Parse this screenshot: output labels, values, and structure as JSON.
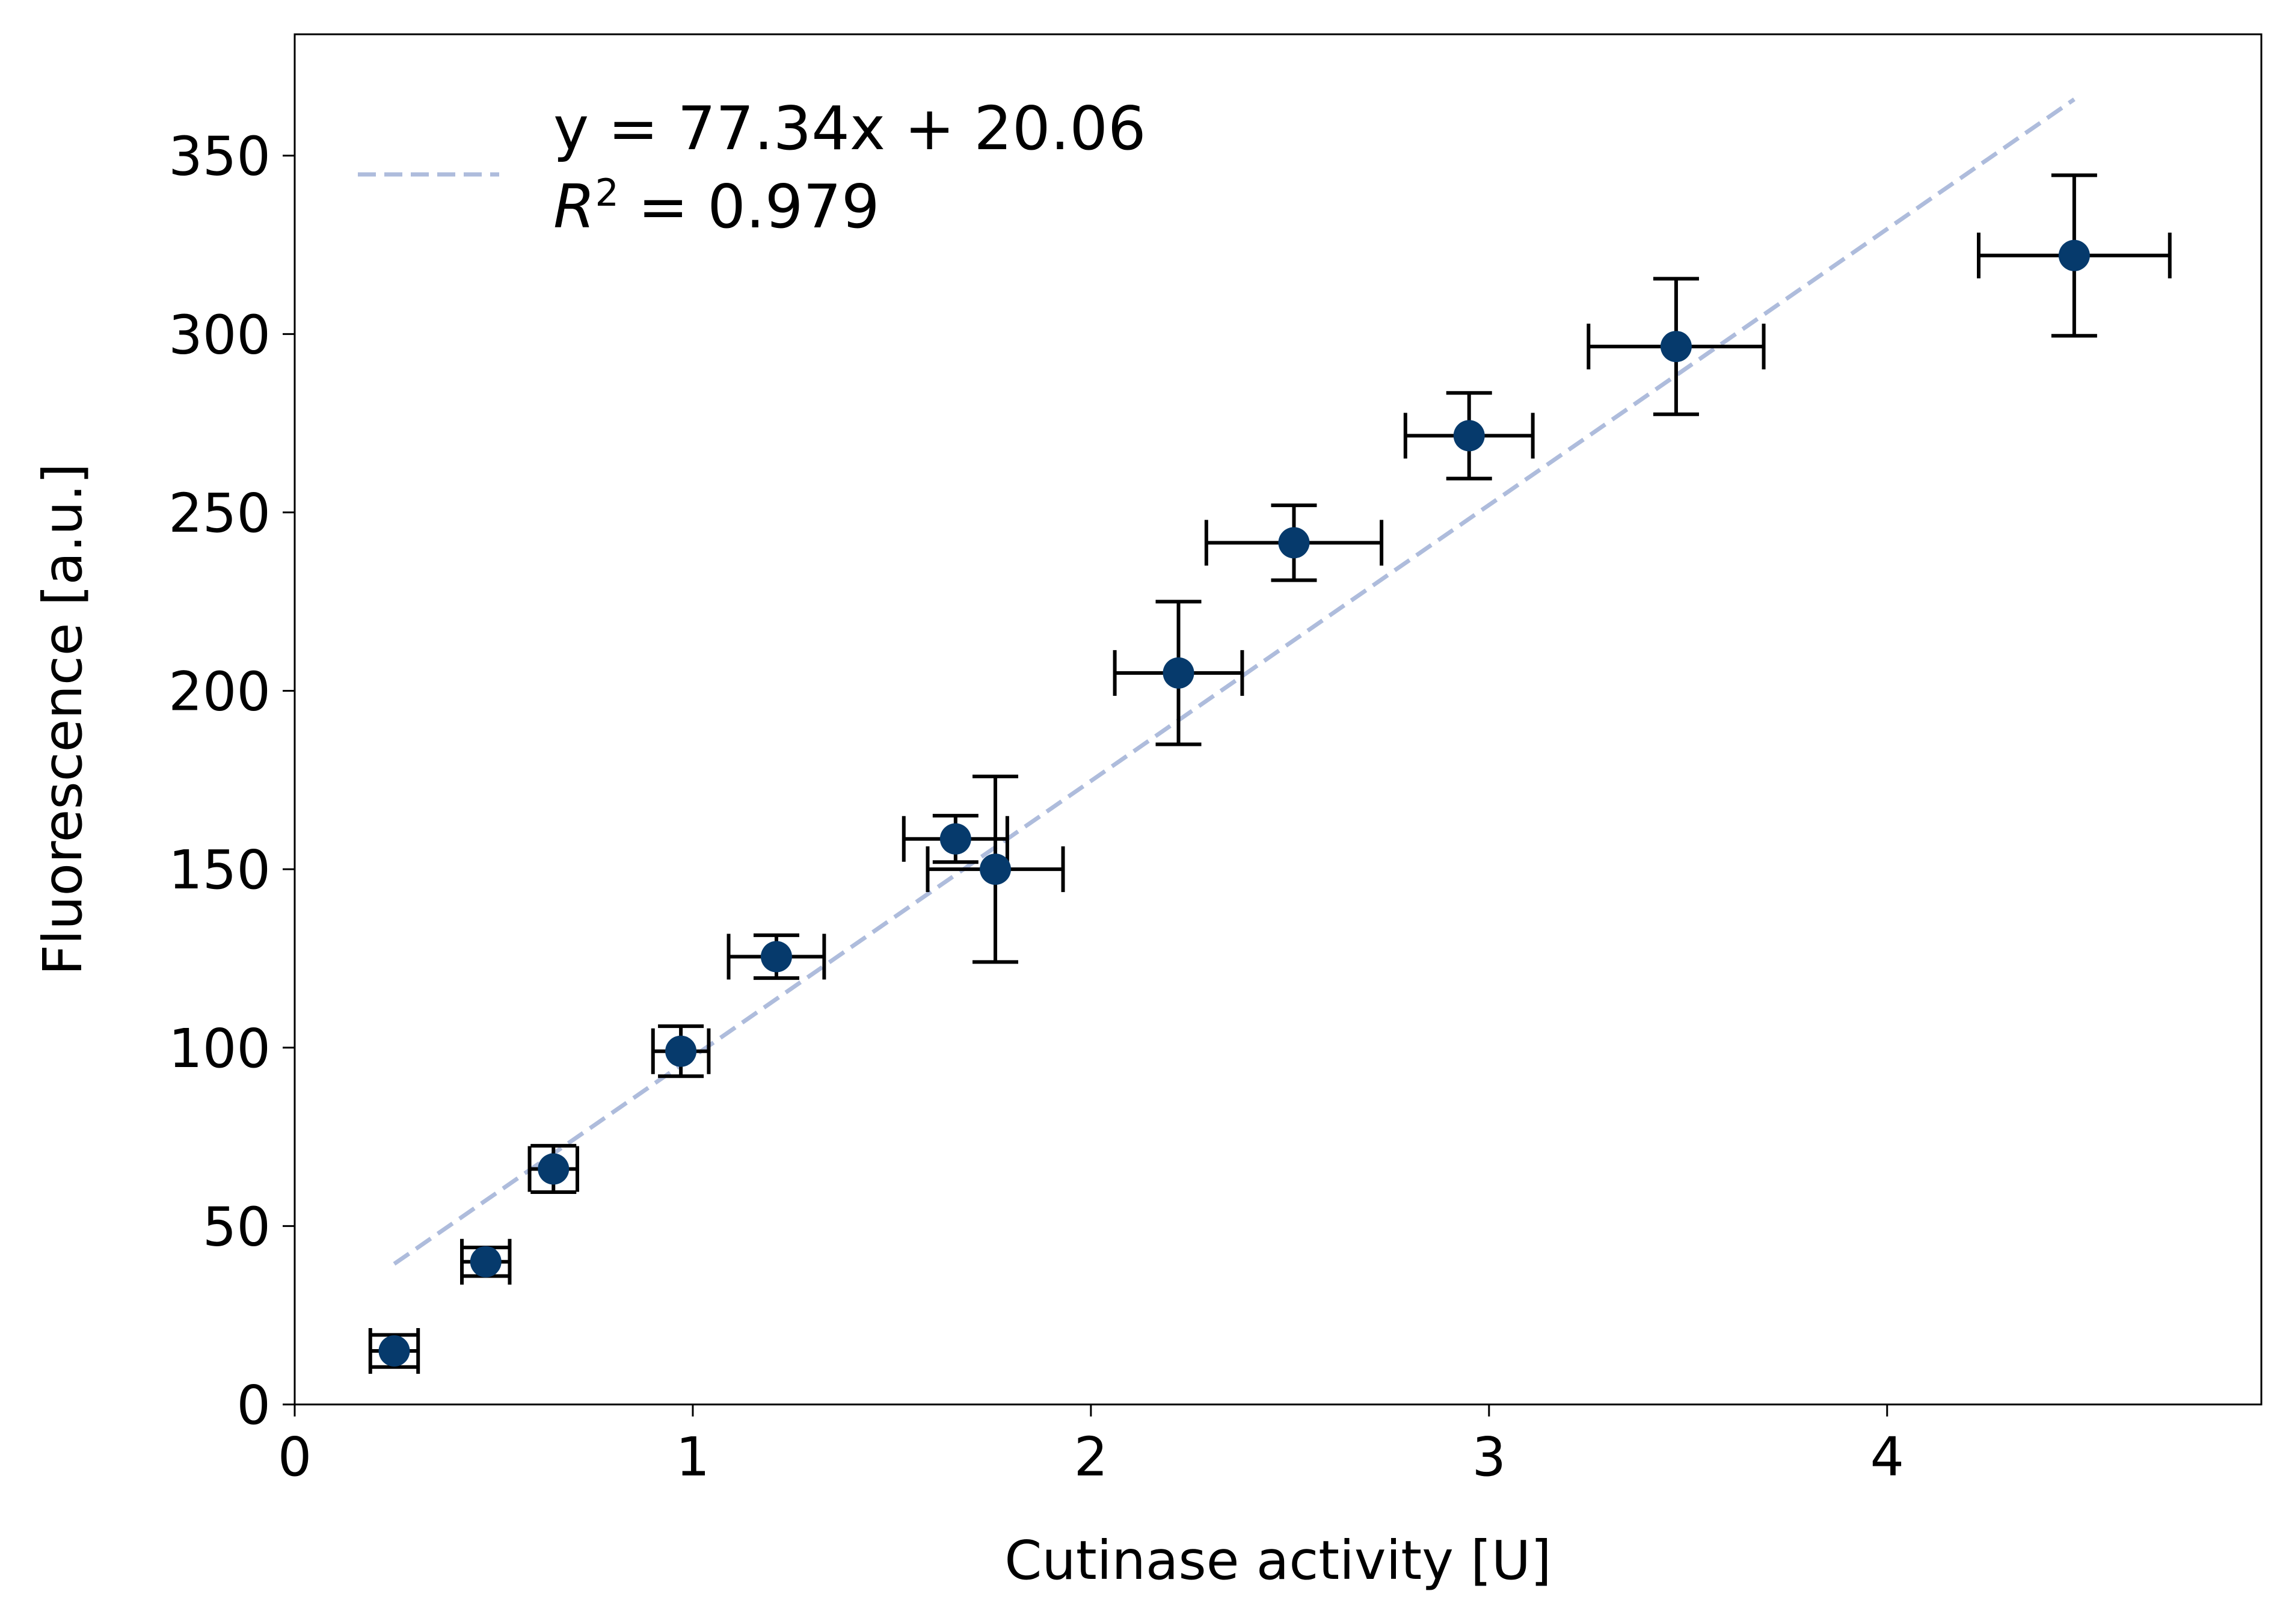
{
  "chart_data": {
    "type": "scatter",
    "title": "",
    "xlabel": "Cutinase activity [U]",
    "ylabel": "Fluorescence [a.u.]",
    "xlim": [
      0,
      4.94
    ],
    "ylim": [
      0,
      384
    ],
    "xticks": [
      0,
      1,
      2,
      3,
      4
    ],
    "yticks": [
      0,
      50,
      100,
      150,
      200,
      250,
      300,
      350
    ],
    "xtick_labels": [
      "0",
      "1",
      "2",
      "3",
      "4"
    ],
    "ytick_labels": [
      "0",
      "50",
      "100",
      "150",
      "200",
      "250",
      "300",
      "350"
    ],
    "grid": false,
    "legend_position": "top-left",
    "series": [
      {
        "kind": "errorbar",
        "marker_color": "#063a6c",
        "errorbar_color": "#000000",
        "points": [
          {
            "x": 0.25,
            "y": 15,
            "xerr": 0.06,
            "yerr": 4.5
          },
          {
            "x": 0.48,
            "y": 40,
            "xerr": 0.06,
            "yerr": 4.0
          },
          {
            "x": 0.65,
            "y": 66,
            "xerr": 0.06,
            "yerr": 6.5
          },
          {
            "x": 0.97,
            "y": 99,
            "xerr": 0.07,
            "yerr": 7.0
          },
          {
            "x": 1.21,
            "y": 125.5,
            "xerr": 0.12,
            "yerr": 6.0
          },
          {
            "x": 1.66,
            "y": 158.5,
            "xerr": 0.13,
            "yerr": 6.5
          },
          {
            "x": 1.76,
            "y": 150,
            "xerr": 0.17,
            "yerr": 26.0
          },
          {
            "x": 2.22,
            "y": 205,
            "xerr": 0.16,
            "yerr": 20.0
          },
          {
            "x": 2.51,
            "y": 241.5,
            "xerr": 0.22,
            "yerr": 10.5
          },
          {
            "x": 2.95,
            "y": 271.5,
            "xerr": 0.16,
            "yerr": 12.0
          },
          {
            "x": 3.47,
            "y": 296.5,
            "xerr": 0.22,
            "yerr": 19.0
          },
          {
            "x": 4.47,
            "y": 322,
            "xerr": 0.24,
            "yerr": 22.5
          }
        ]
      },
      {
        "kind": "fit-line",
        "name": "y = 77.34x + 20.06",
        "slope": 77.34,
        "intercept": 20.06,
        "x_range": [
          0.25,
          4.47
        ],
        "line_color": "#aebcdc",
        "line_style": "dashed"
      }
    ],
    "legend": {
      "line1": "y = 77.34x + 20.06",
      "line2_R": "R",
      "line2_sup": "2",
      "line2_rest": " = 0.979"
    }
  }
}
